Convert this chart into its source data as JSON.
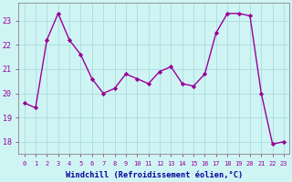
{
  "x": [
    0,
    1,
    2,
    3,
    4,
    5,
    6,
    7,
    8,
    9,
    10,
    11,
    12,
    13,
    14,
    15,
    16,
    17,
    18,
    19,
    20,
    21,
    22,
    23
  ],
  "y": [
    19.6,
    19.4,
    22.2,
    23.3,
    22.2,
    21.6,
    20.6,
    20.0,
    20.2,
    20.8,
    20.6,
    20.4,
    20.9,
    21.1,
    20.4,
    20.3,
    20.8,
    22.5,
    23.3,
    23.3,
    23.2,
    20.0,
    17.9,
    18.0
  ],
  "line_color": "#990099",
  "marker": "D",
  "marker_size": 2.2,
  "bg_color": "#cff4f4",
  "grid_color": "#aadddd",
  "xlabel": "Windchill (Refroidissement éolien,°C)",
  "xlabel_color": "#000099",
  "tick_color": "#990099",
  "xlim": [
    -0.5,
    23.5
  ],
  "ylim": [
    17.5,
    23.75
  ],
  "yticks": [
    18,
    19,
    20,
    21,
    22,
    23
  ],
  "xticks": [
    0,
    1,
    2,
    3,
    4,
    5,
    6,
    7,
    8,
    9,
    10,
    11,
    12,
    13,
    14,
    15,
    16,
    17,
    18,
    19,
    20,
    21,
    22,
    23
  ],
  "line_width": 1.0,
  "spine_color": "#888888",
  "ytick_fontsize": 6.0,
  "xtick_fontsize": 5.0,
  "xlabel_fontsize": 6.2
}
